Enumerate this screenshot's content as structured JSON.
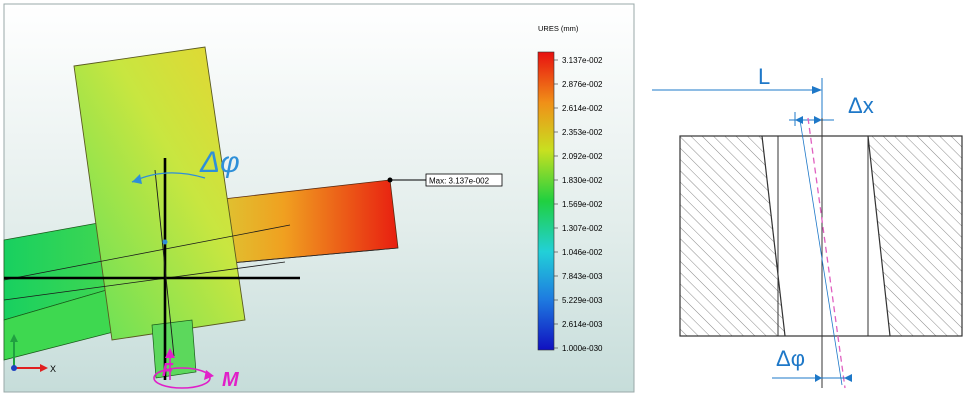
{
  "fea_view": {
    "legend": {
      "title": "URES (mm)",
      "ticks": [
        "3.137e-002",
        "2.876e-002",
        "2.614e-002",
        "2.353e-002",
        "2.092e-002",
        "1.830e-002",
        "1.569e-002",
        "1.307e-002",
        "1.046e-002",
        "7.843e-003",
        "5.229e-003",
        "2.614e-003",
        "1.000e-030"
      ]
    },
    "max_label": "Max: 3.137e-002",
    "angle_label": "Δφ",
    "force_label": "F",
    "moment_label": "M",
    "axis_x_label": "X",
    "colors": {
      "accent": "#2E8FD8",
      "load": "#E020C8"
    }
  },
  "schematic": {
    "length_label": "L",
    "offset_label": "Δx",
    "angle_label": "Δφ",
    "colors": {
      "dimension": "#1E78C8",
      "tilt": "#E060C0"
    }
  }
}
